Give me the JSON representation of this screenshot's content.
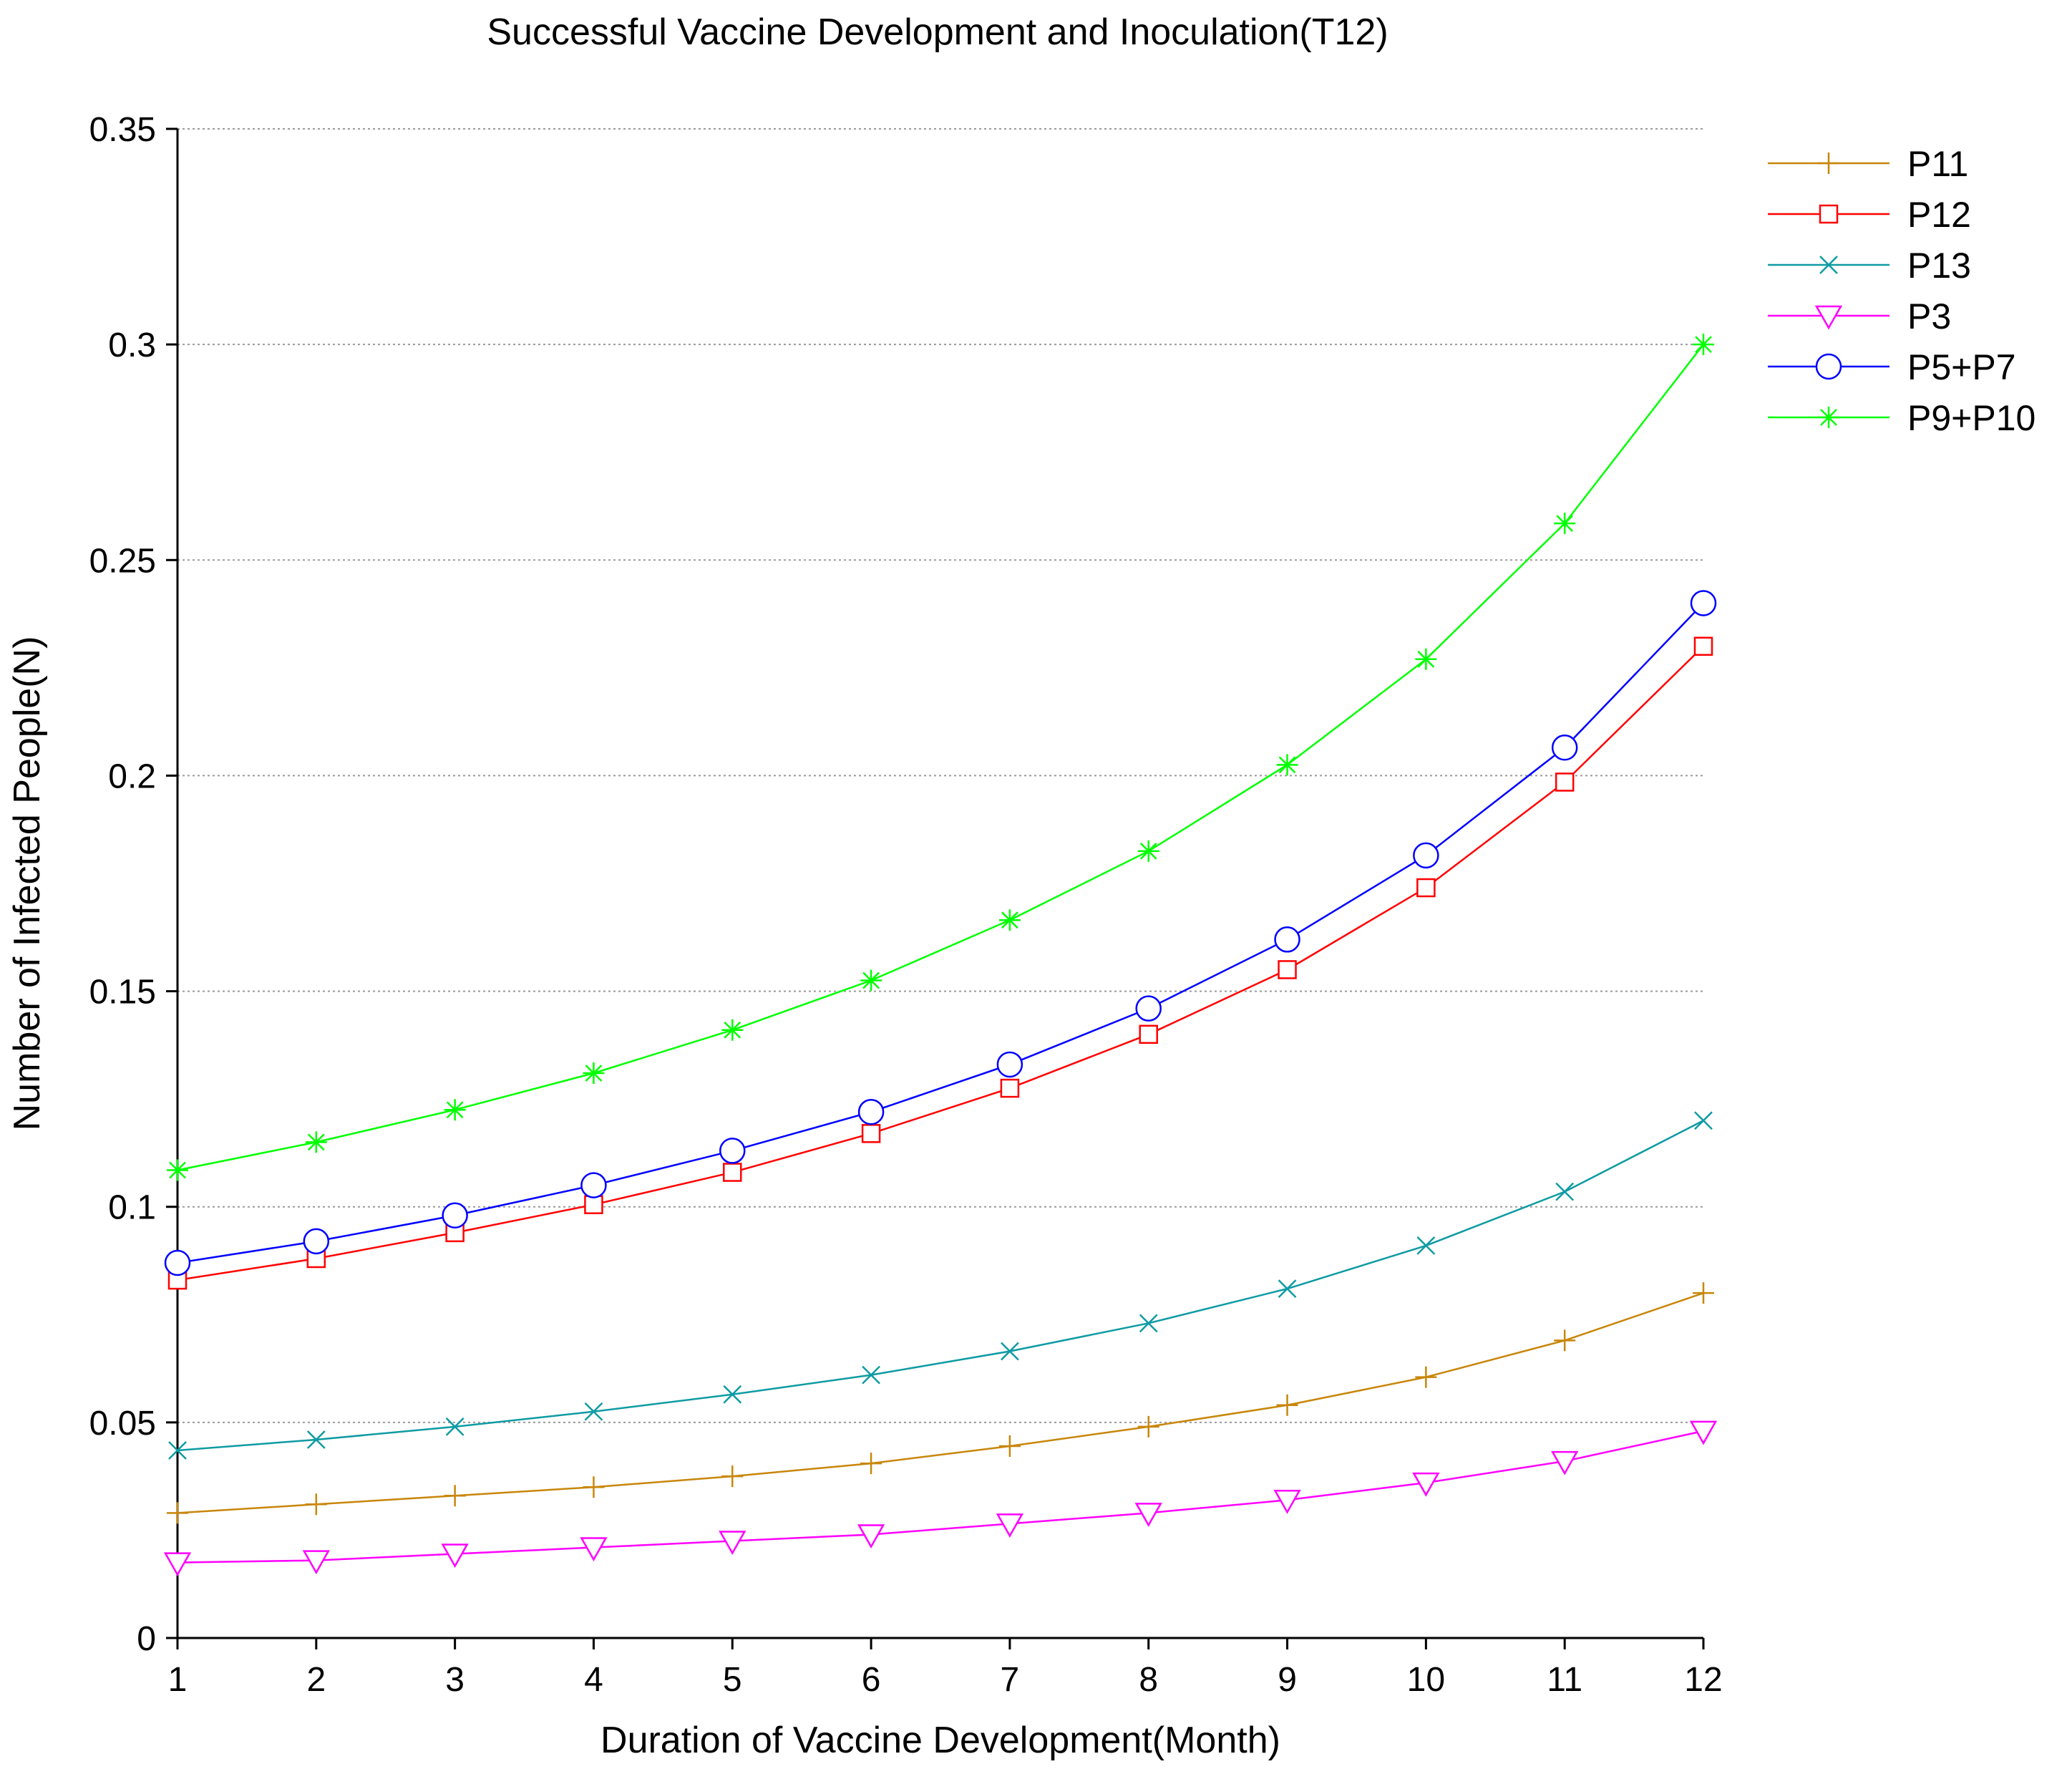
{
  "chart_data": {
    "type": "line",
    "title": "Successful Vaccine Development and Inoculation(T12)",
    "xlabel": "Duration of Vaccine Development(Month)",
    "ylabel": "Number of Infected People(N)",
    "x": [
      1,
      2,
      3,
      4,
      5,
      6,
      7,
      8,
      9,
      10,
      11,
      12
    ],
    "x_tick_labels": [
      "1",
      "2",
      "3",
      "4",
      "5",
      "6",
      "7",
      "8",
      "9",
      "10",
      "11",
      "12"
    ],
    "xlim": [
      1,
      12
    ],
    "ylim": [
      0,
      0.35
    ],
    "y_ticks": [
      0,
      0.05,
      0.1,
      0.15,
      0.2,
      0.25,
      0.3,
      0.35
    ],
    "y_tick_labels": [
      "0",
      "0.05",
      "0.1",
      "0.15",
      "0.2",
      "0.25",
      "0.3",
      "0.35"
    ],
    "grid": "horizontal dotted",
    "legend_position": "top-right",
    "series": [
      {
        "name": "P11",
        "color": "#c8860a",
        "marker": "plus",
        "values": [
          0.029,
          0.031,
          0.033,
          0.035,
          0.0375,
          0.0405,
          0.0445,
          0.049,
          0.054,
          0.0605,
          0.069,
          0.08
        ]
      },
      {
        "name": "P12",
        "color": "#ff0000",
        "marker": "square",
        "values": [
          0.083,
          0.088,
          0.094,
          0.1005,
          0.108,
          0.117,
          0.1275,
          0.14,
          0.155,
          0.174,
          0.1985,
          0.23
        ]
      },
      {
        "name": "P13",
        "color": "#0e9ba3",
        "marker": "x",
        "values": [
          0.0435,
          0.046,
          0.049,
          0.0525,
          0.0565,
          0.061,
          0.0665,
          0.073,
          0.081,
          0.091,
          0.1035,
          0.12
        ]
      },
      {
        "name": "P3",
        "color": "#ff00ff",
        "marker": "triangle-down",
        "values": [
          0.0175,
          0.018,
          0.0195,
          0.021,
          0.0225,
          0.024,
          0.0265,
          0.029,
          0.032,
          0.036,
          0.041,
          0.048
        ]
      },
      {
        "name": "P5+P7",
        "color": "#0000ff",
        "marker": "circle",
        "values": [
          0.087,
          0.092,
          0.098,
          0.105,
          0.113,
          0.122,
          0.133,
          0.146,
          0.162,
          0.1815,
          0.2065,
          0.24
        ]
      },
      {
        "name": "P9+P10",
        "color": "#00ff00",
        "marker": "asterisk",
        "values": [
          0.1085,
          0.115,
          0.1225,
          0.131,
          0.141,
          0.1525,
          0.1665,
          0.1825,
          0.2025,
          0.227,
          0.2585,
          0.3
        ]
      }
    ]
  }
}
